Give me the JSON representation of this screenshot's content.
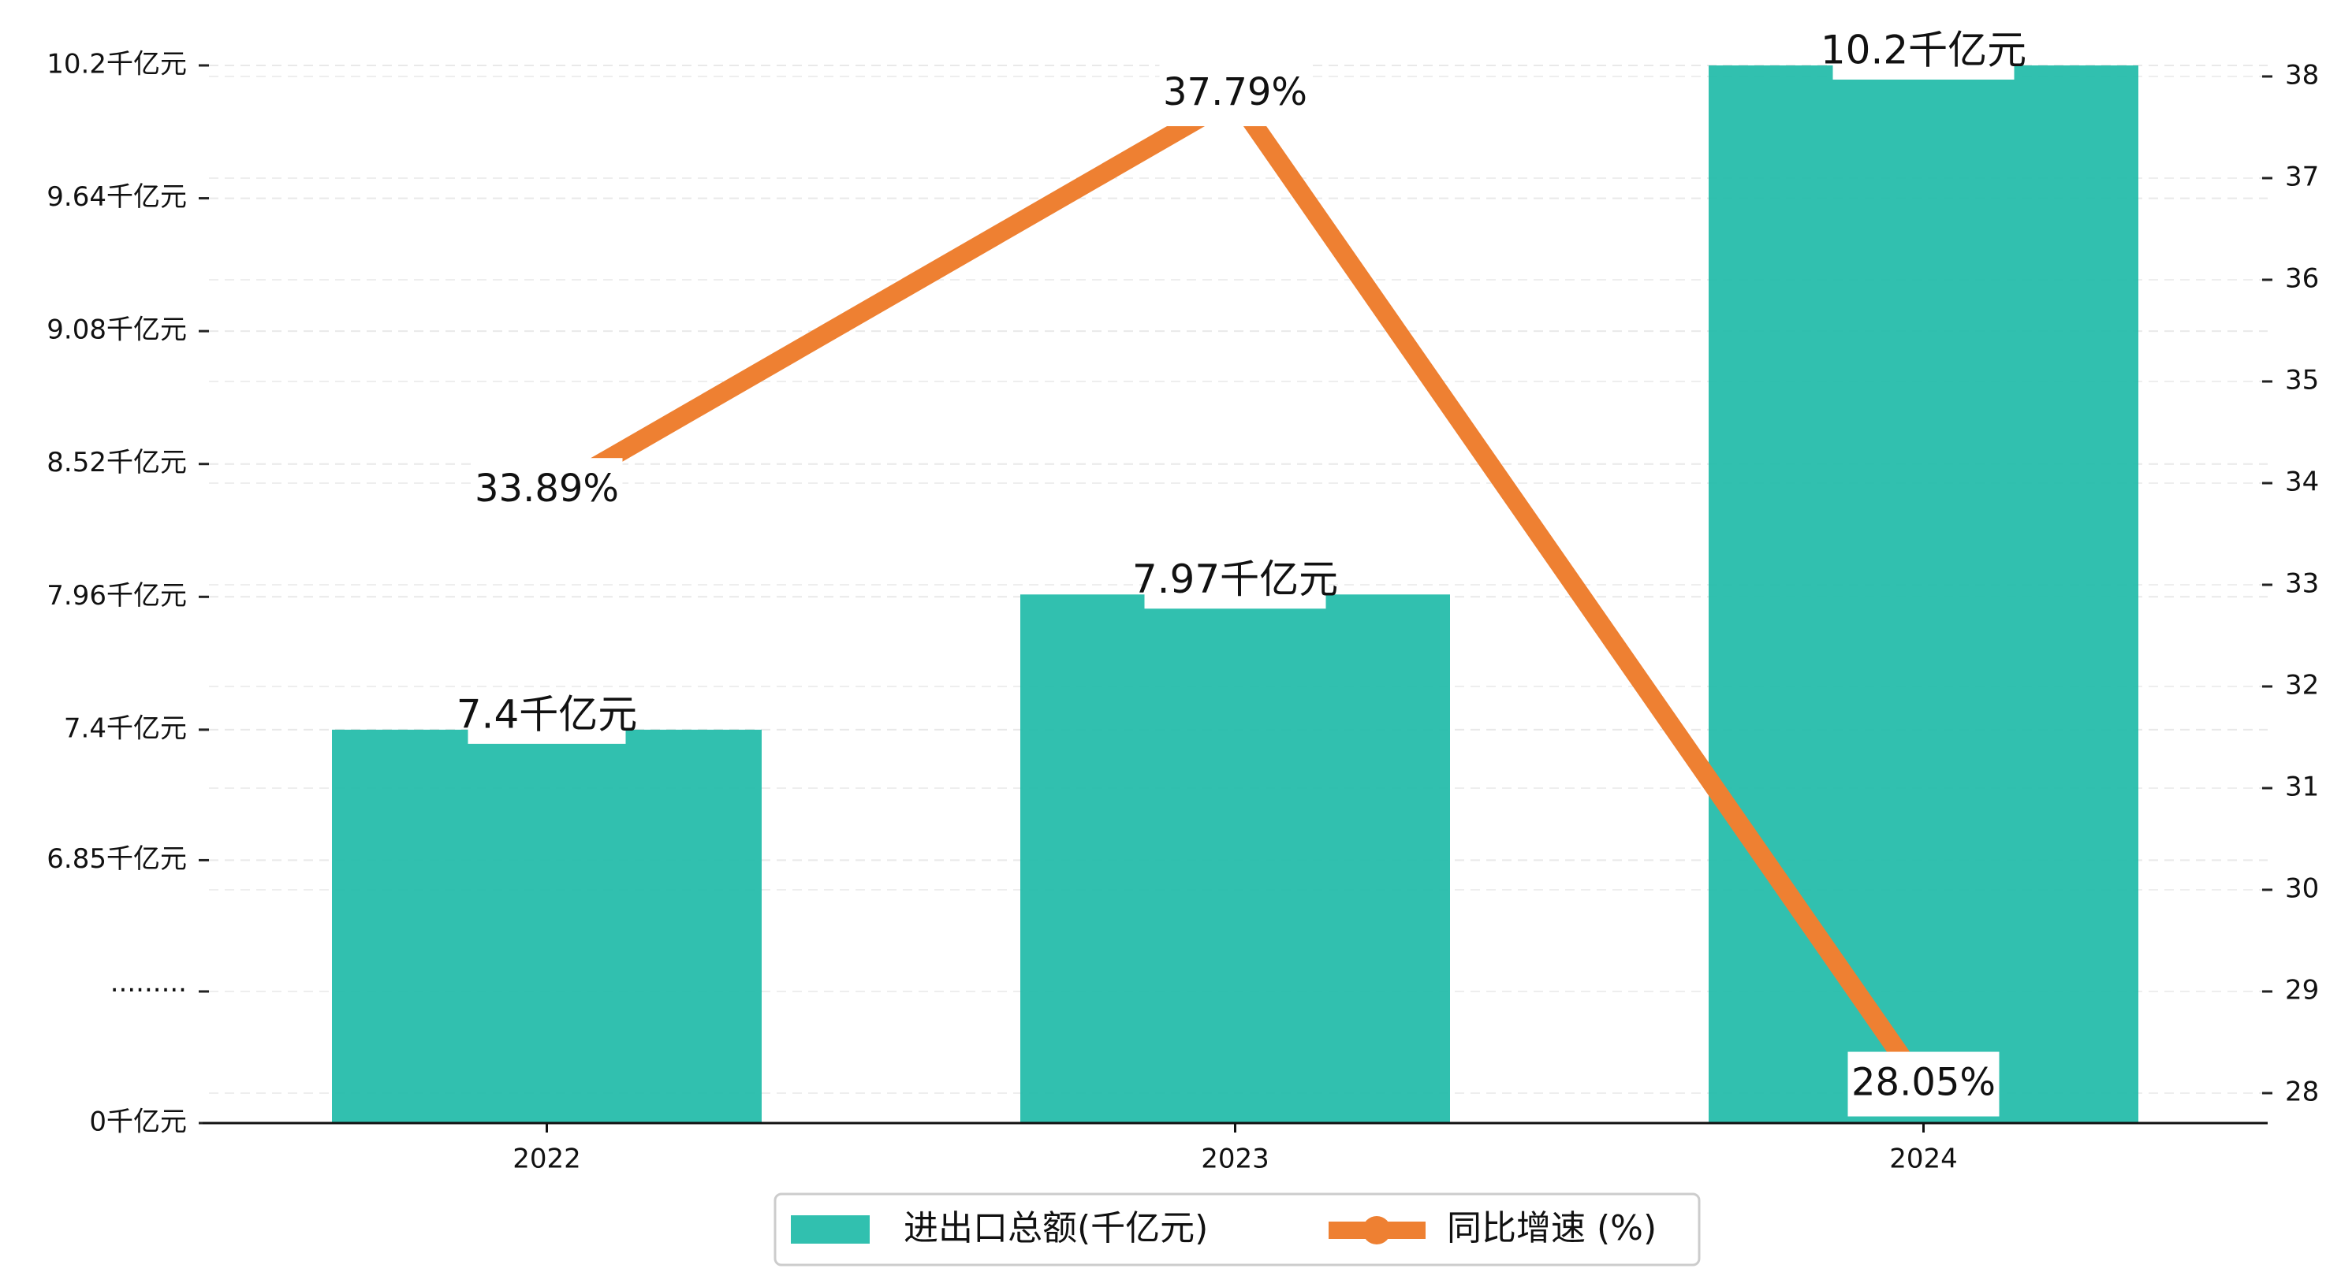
{
  "chart_data": {
    "type": "bar+line",
    "categories": [
      "2022",
      "2023",
      "2024"
    ],
    "series": [
      {
        "name": "进出口总额(千亿元)",
        "type": "bar",
        "axis": "left",
        "values": [
          7.4,
          7.97,
          10.2
        ],
        "labels": [
          "7.4千亿元",
          "7.97千亿元",
          "10.2千亿元"
        ],
        "color": "#20BBA8"
      },
      {
        "name": "同比增速 (%)",
        "type": "line",
        "axis": "right",
        "values": [
          33.89,
          37.79,
          28.05
        ],
        "labels": [
          "33.89%",
          "37.79%",
          "28.05%"
        ],
        "color": "#EE8032"
      }
    ],
    "left_axis": {
      "ticks": [
        {
          "label": "0千亿元",
          "value": 0
        },
        {
          "label": "·········",
          "value": null
        },
        {
          "label": "6.85千亿元",
          "value": 6.85
        },
        {
          "label": "7.4千亿元",
          "value": 7.4
        },
        {
          "label": "7.96千亿元",
          "value": 7.96
        },
        {
          "label": "8.52千亿元",
          "value": 8.52
        },
        {
          "label": "9.08千亿元",
          "value": 9.08
        },
        {
          "label": "9.64千亿元",
          "value": 9.64
        },
        {
          "label": "10.2千亿元",
          "value": 10.2
        }
      ],
      "broken_range": [
        6.29,
        10.2
      ]
    },
    "right_axis": {
      "ticks": [
        "28",
        "29",
        "30",
        "31",
        "32",
        "33",
        "34",
        "35",
        "36",
        "37",
        "38"
      ],
      "range": [
        27.2,
        38.95
      ]
    },
    "legend": {
      "placement": "bottom-center",
      "items": [
        {
          "label": "进出口总额(千亿元)",
          "kind": "bar",
          "color": "#20BBA8"
        },
        {
          "label": "同比增速 (%)",
          "kind": "line",
          "color": "#EE8032"
        }
      ]
    },
    "grid": true
  }
}
